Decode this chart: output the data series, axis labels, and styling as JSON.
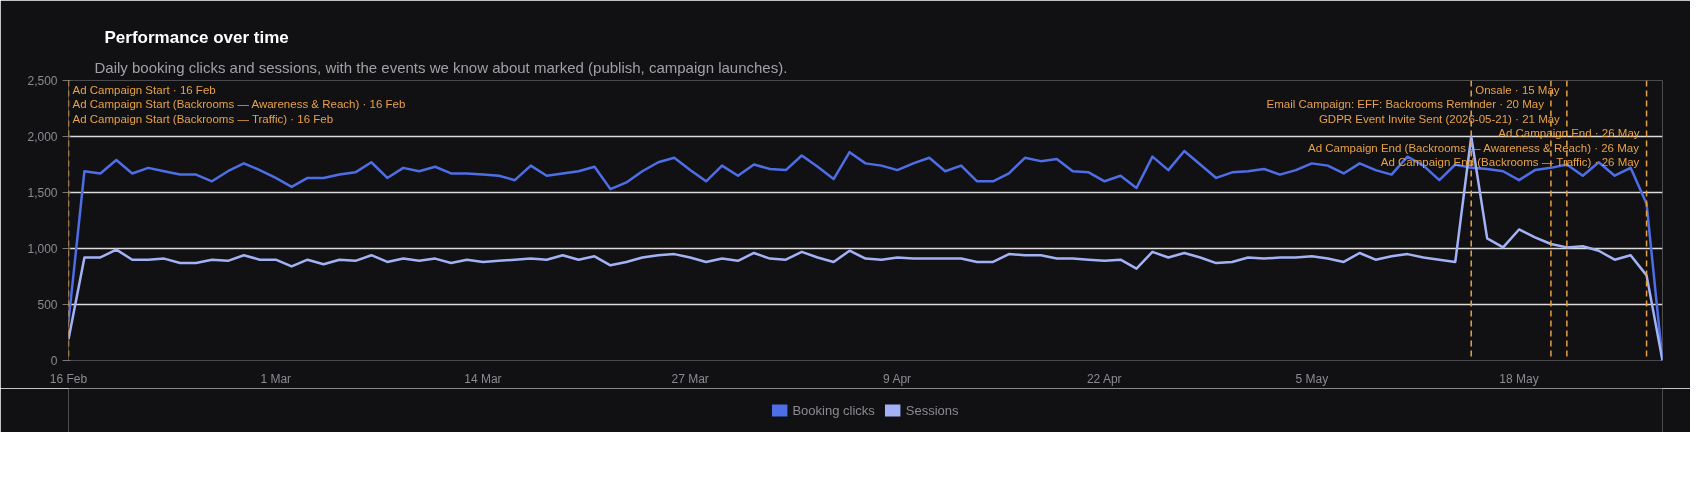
{
  "chart_data": {
    "type": "line",
    "title": "Performance over time",
    "subtitle": "Daily booking clicks and sessions, with the events we know about marked (publish, campaign launches).",
    "x": [
      "2026-02-16",
      "2026-02-17",
      "2026-02-18",
      "2026-02-19",
      "2026-02-20",
      "2026-02-21",
      "2026-02-22",
      "2026-02-23",
      "2026-02-24",
      "2026-02-25",
      "2026-02-26",
      "2026-02-27",
      "2026-02-28",
      "2026-03-01",
      "2026-03-02",
      "2026-03-03",
      "2026-03-04",
      "2026-03-05",
      "2026-03-06",
      "2026-03-07",
      "2026-03-08",
      "2026-03-09",
      "2026-03-10",
      "2026-03-11",
      "2026-03-12",
      "2026-03-13",
      "2026-03-14",
      "2026-03-15",
      "2026-03-16",
      "2026-03-17",
      "2026-03-18",
      "2026-03-19",
      "2026-03-20",
      "2026-03-21",
      "2026-03-22",
      "2026-03-23",
      "2026-03-24",
      "2026-03-25",
      "2026-03-26",
      "2026-03-27",
      "2026-03-28",
      "2026-03-29",
      "2026-03-30",
      "2026-03-31",
      "2026-04-01",
      "2026-04-02",
      "2026-04-03",
      "2026-04-04",
      "2026-04-05",
      "2026-04-06",
      "2026-04-07",
      "2026-04-08",
      "2026-04-09",
      "2026-04-10",
      "2026-04-11",
      "2026-04-12",
      "2026-04-13",
      "2026-04-14",
      "2026-04-15",
      "2026-04-16",
      "2026-04-17",
      "2026-04-18",
      "2026-04-19",
      "2026-04-20",
      "2026-04-21",
      "2026-04-22",
      "2026-04-23",
      "2026-04-24",
      "2026-04-25",
      "2026-04-26",
      "2026-04-27",
      "2026-04-28",
      "2026-04-29",
      "2026-04-30",
      "2026-05-01",
      "2026-05-02",
      "2026-05-03",
      "2026-05-04",
      "2026-05-05",
      "2026-05-06",
      "2026-05-07",
      "2026-05-08",
      "2026-05-09",
      "2026-05-10",
      "2026-05-11",
      "2026-05-12",
      "2026-05-13",
      "2026-05-14",
      "2026-05-15",
      "2026-05-16",
      "2026-05-17",
      "2026-05-18",
      "2026-05-19",
      "2026-05-20",
      "2026-05-21",
      "2026-05-22",
      "2026-05-23",
      "2026-05-24",
      "2026-05-25",
      "2026-05-26",
      "2026-05-27"
    ],
    "series": [
      {
        "name": "Booking clicks",
        "color": "#4d6ee6",
        "values": [
          350,
          1690,
          1670,
          1790,
          1670,
          1720,
          1690,
          1660,
          1660,
          1600,
          1690,
          1760,
          1700,
          1630,
          1550,
          1630,
          1630,
          1660,
          1680,
          1770,
          1630,
          1720,
          1690,
          1730,
          1670,
          1670,
          1660,
          1650,
          1610,
          1740,
          1650,
          1670,
          1690,
          1730,
          1530,
          1590,
          1690,
          1770,
          1810,
          1700,
          1600,
          1740,
          1650,
          1750,
          1710,
          1700,
          1830,
          1730,
          1620,
          1860,
          1760,
          1740,
          1700,
          1760,
          1810,
          1690,
          1740,
          1600,
          1600,
          1670,
          1810,
          1780,
          1800,
          1690,
          1680,
          1600,
          1650,
          1540,
          1820,
          1700,
          1870,
          1750,
          1630,
          1680,
          1690,
          1710,
          1660,
          1700,
          1760,
          1740,
          1670,
          1760,
          1700,
          1660,
          1820,
          1740,
          1610,
          1750,
          1720,
          1710,
          1690,
          1610,
          1700,
          1720,
          1750,
          1650,
          1770,
          1650,
          1720,
          1400,
          0
        ]
      },
      {
        "name": "Sessions",
        "color": "#a3b2f5",
        "values": [
          190,
          920,
          920,
          990,
          900,
          900,
          910,
          870,
          870,
          900,
          890,
          940,
          900,
          900,
          840,
          900,
          860,
          900,
          890,
          940,
          880,
          910,
          890,
          910,
          870,
          900,
          880,
          890,
          900,
          910,
          900,
          940,
          900,
          930,
          850,
          880,
          920,
          940,
          950,
          920,
          880,
          910,
          890,
          960,
          910,
          900,
          970,
          920,
          880,
          980,
          910,
          900,
          920,
          910,
          910,
          910,
          910,
          880,
          880,
          950,
          940,
          940,
          910,
          910,
          900,
          890,
          900,
          820,
          970,
          920,
          960,
          920,
          870,
          880,
          920,
          910,
          920,
          920,
          930,
          910,
          880,
          960,
          900,
          930,
          950,
          920,
          900,
          880,
          2000,
          1090,
          1010,
          1170,
          1100,
          1040,
          1010,
          1020,
          980,
          900,
          940,
          760,
          0
        ]
      }
    ],
    "xlim": [
      "2026-02-16",
      "2026-05-27"
    ],
    "xticks": [
      {
        "value": "2026-02-16",
        "label": "16 Feb"
      },
      {
        "value": "2026-03-01",
        "label": "1 Mar"
      },
      {
        "value": "2026-03-14",
        "label": "14 Mar"
      },
      {
        "value": "2026-03-27",
        "label": "27 Mar"
      },
      {
        "value": "2026-04-09",
        "label": "9 Apr"
      },
      {
        "value": "2026-04-22",
        "label": "22 Apr"
      },
      {
        "value": "2026-05-05",
        "label": "5 May"
      },
      {
        "value": "2026-05-18",
        "label": "18 May"
      }
    ],
    "ylim": [
      0,
      2500
    ],
    "yticks": [
      0,
      500,
      {
        "value": 1000,
        "label": "1,000"
      },
      {
        "value": 1500,
        "label": "1,500"
      },
      {
        "value": 2000,
        "label": "2,000"
      },
      {
        "value": 2500,
        "label": "2,500"
      }
    ],
    "ref_lines": [
      {
        "axis": "x",
        "value": "2026-02-16",
        "label": "Ad Campaign Start · 16 Feb\nAd Campaign Start (Backrooms — Awareness & Reach) · 16 Feb\nAd Campaign Start (Backrooms — Traffic) · 16 Feb",
        "color": "#e9a23b",
        "line_style": "dashed"
      },
      {
        "axis": "x",
        "value": "2026-05-15",
        "label": "Onsale · 15 May",
        "color": "#e9a23b",
        "line_style": "dashed"
      },
      {
        "axis": "x",
        "value": "2026-05-20",
        "label": "Email Campaign: EFF: Backrooms Reminder · 20 May",
        "color": "#e9a23b",
        "line_style": "dashed"
      },
      {
        "axis": "x",
        "value": "2026-05-21",
        "label": "GDPR Event Invite Sent (2026-05-21) · 21 May",
        "color": "#e9a23b",
        "line_style": "dashed"
      },
      {
        "axis": "x",
        "value": "2026-05-26",
        "label": "Ad Campaign End · 26 May\nAd Campaign End (Backrooms — Awareness & Reach) · 26 May\nAd Campaign End (Backrooms — Traffic) · 26 May",
        "color": "#e9a23b",
        "line_style": "dashed"
      }
    ],
    "grid": "y",
    "legend": "bottom",
    "line_style": "solid"
  }
}
